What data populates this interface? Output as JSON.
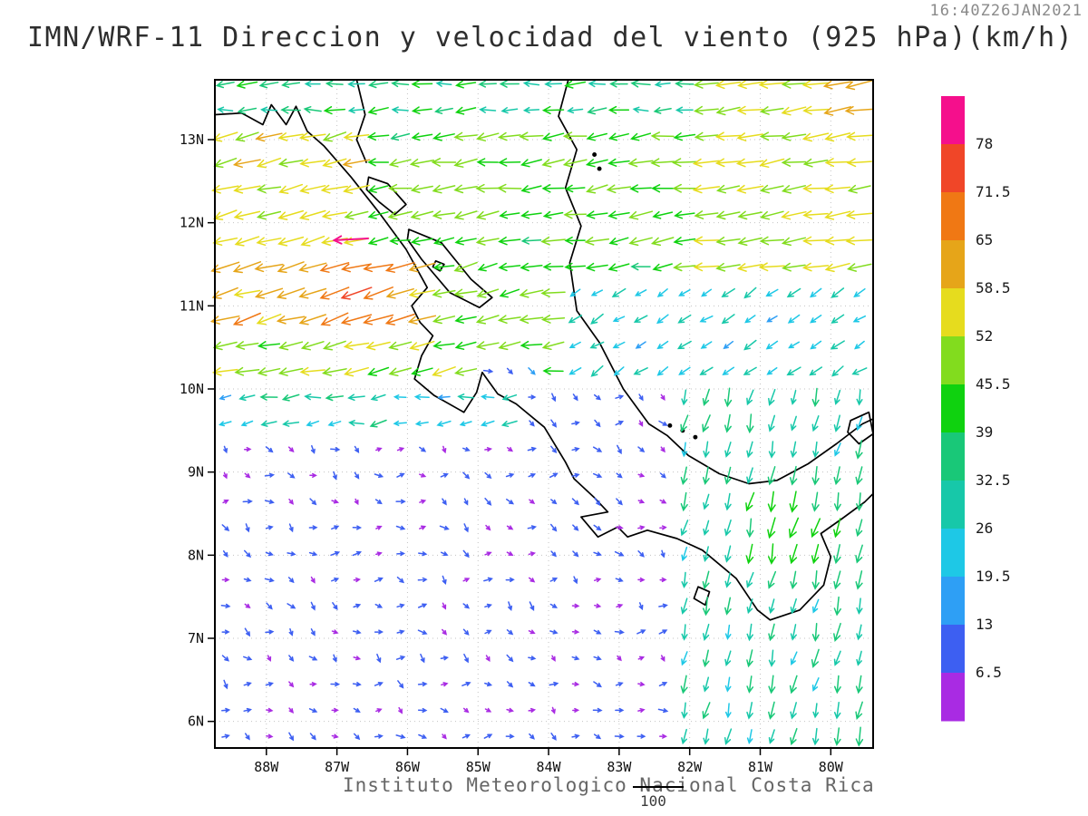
{
  "chart_data": {
    "type": "quiver",
    "title": "IMN/WRF-11 Direccion y velocidad del viento (925 hPa)(km/h)",
    "timestamp": "16:40Z26JAN2021",
    "caption": "Instituto Meteorologico Nacional Costa Rica",
    "reference_vector": {
      "label": "100",
      "speed_kmh": 100
    },
    "units": "km/h",
    "pressure_level": "925 hPa",
    "axes": {
      "lat_ticks": [
        {
          "label": "13N",
          "value": 13
        },
        {
          "label": "12N",
          "value": 12
        },
        {
          "label": "11N",
          "value": 11
        },
        {
          "label": "10N",
          "value": 10
        },
        {
          "label": "9N",
          "value": 9
        },
        {
          "label": "8N",
          "value": 8
        },
        {
          "label": "7N",
          "value": 7
        },
        {
          "label": "6N",
          "value": 6
        }
      ],
      "lon_ticks": [
        {
          "label": "88W",
          "value": -88
        },
        {
          "label": "87W",
          "value": -87
        },
        {
          "label": "86W",
          "value": -86
        },
        {
          "label": "85W",
          "value": -85
        },
        {
          "label": "84W",
          "value": -84
        },
        {
          "label": "83W",
          "value": -83
        },
        {
          "label": "82W",
          "value": -82
        },
        {
          "label": "81W",
          "value": -81
        },
        {
          "label": "80W",
          "value": -80
        }
      ]
    },
    "extent": {
      "lon_min": -88.73,
      "lon_max": -79.4,
      "lat_min": 5.68,
      "lat_max": 13.72
    },
    "colorbar": {
      "levels_kmh": [
        6.5,
        13,
        19.5,
        26,
        32.5,
        39,
        45.5,
        52,
        58.5,
        65,
        71.5,
        78
      ],
      "colors_low_to_high": [
        "#A92BE3",
        "#3D5FF2",
        "#2E9FF5",
        "#1EC8E6",
        "#17C8A9",
        "#19C878",
        "#0FD20F",
        "#82DC1E",
        "#E6DC1E",
        "#E6A519",
        "#F07814",
        "#F04628",
        "#F50F8C"
      ]
    },
    "grid": {
      "lon_start": -88.58,
      "lon_step": 0.31,
      "cols": 30,
      "lat_start": 5.82,
      "lat_step": 0.314,
      "rows": 26
    },
    "wind_regions": [
      {
        "name": "trades-north",
        "lon": [
          -88.8,
          -79.3
        ],
        "lat": [
          9.9,
          13.75
        ],
        "angle": 188,
        "jitter": 10,
        "speed": [
          38,
          52
        ]
      },
      {
        "name": "top-band",
        "lon": [
          -88.8,
          -79.3
        ],
        "lat": [
          13.05,
          13.75
        ],
        "angle": 183,
        "jitter": 12,
        "speed": [
          27,
          44
        ]
      },
      {
        "name": "west-yellow",
        "lon": [
          -88.8,
          -86.6
        ],
        "lat": [
          11.7,
          13.2
        ],
        "angle": 193,
        "jitter": 8,
        "speed": [
          50,
          60
        ]
      },
      {
        "name": "papagayo-jet",
        "lon": [
          -88.8,
          -85.55
        ],
        "lat": [
          10.72,
          11.75
        ],
        "angle": 197,
        "jitter": 8,
        "speed": [
          55,
          66
        ],
        "hotspots": [
          {
            "lon": -86.7,
            "lat": 11.15,
            "r": 0.9,
            "peak": 73
          }
        ]
      },
      {
        "name": "nicoya-band",
        "lon": [
          -88.8,
          -84.9
        ],
        "lat": [
          10.2,
          10.75
        ],
        "angle": 192,
        "jitter": 8,
        "speed": [
          44,
          54
        ],
        "hotspots": [
          {
            "lon": -85.5,
            "lat": 10.62,
            "r": 0.45,
            "peak": 62
          }
        ]
      },
      {
        "name": "lake-gap",
        "lon": [
          -85.55,
          -84.4
        ],
        "lat": [
          10.4,
          11.9
        ],
        "angle": 195,
        "jitter": 10,
        "speed": [
          40,
          52
        ]
      },
      {
        "name": "caribbean-north",
        "lon": [
          -81.9,
          -79.3
        ],
        "lat": [
          11.35,
          13.75
        ],
        "angle": 188,
        "jitter": 7,
        "speed": [
          48,
          58
        ],
        "hotspots": [
          {
            "lon": -79.6,
            "lat": 13.55,
            "r": 0.85,
            "peak": 64
          }
        ]
      },
      {
        "name": "caribbean-mid",
        "lon": [
          -83.9,
          -79.3
        ],
        "lat": [
          9.95,
          11.35
        ],
        "angle": 213,
        "jitter": 10,
        "speed": [
          19,
          30
        ]
      },
      {
        "name": "sw-pacific",
        "lon": [
          -88.8,
          -82.35
        ],
        "lat": [
          5.6,
          9.95
        ],
        "angle": -22,
        "jitter": 50,
        "speed": [
          4,
          13
        ]
      },
      {
        "name": "west-transition",
        "lon": [
          -88.8,
          -84.4
        ],
        "lat": [
          9.55,
          10.2
        ],
        "angle": 188,
        "jitter": 14,
        "speed": [
          18,
          34
        ]
      },
      {
        "name": "nicoya-lee",
        "lon": [
          -85.15,
          -83.95
        ],
        "lat": [
          9.95,
          10.45
        ],
        "angle": -30,
        "jitter": 40,
        "speed": [
          5,
          14
        ]
      },
      {
        "name": "se-panama",
        "lon": [
          -82.35,
          -79.3
        ],
        "lat": [
          5.6,
          9.95
        ],
        "angle": 256,
        "jitter": 10,
        "speed": [
          25,
          38
        ],
        "hotspots": [
          {
            "lon": -80.6,
            "lat": 8.4,
            "r": 1.1,
            "peak": 46
          }
        ]
      }
    ],
    "special_vectors": [
      {
        "lon": -86.8,
        "lat": 11.8,
        "speed": 80,
        "angle": 183
      }
    ],
    "coastline": {
      "pacific": [
        [
          -88.73,
          13.3
        ],
        [
          -88.35,
          13.32
        ],
        [
          -88.05,
          13.18
        ],
        [
          -87.93,
          13.42
        ],
        [
          -87.72,
          13.18
        ],
        [
          -87.58,
          13.4
        ],
        [
          -87.42,
          13.1
        ],
        [
          -87.18,
          12.92
        ],
        [
          -86.8,
          12.55
        ],
        [
          -86.4,
          12.12
        ],
        [
          -86.02,
          11.68
        ],
        [
          -85.72,
          11.22
        ],
        [
          -85.94,
          11.0
        ],
        [
          -85.82,
          10.8
        ],
        [
          -85.64,
          10.64
        ],
        [
          -85.8,
          10.4
        ],
        [
          -85.9,
          10.12
        ],
        [
          -85.62,
          9.92
        ],
        [
          -85.2,
          9.72
        ],
        [
          -85.02,
          9.96
        ],
        [
          -84.94,
          10.2
        ],
        [
          -84.72,
          9.94
        ],
        [
          -84.46,
          9.82
        ],
        [
          -84.06,
          9.54
        ],
        [
          -83.76,
          9.12
        ],
        [
          -83.64,
          8.92
        ],
        [
          -83.36,
          8.7
        ],
        [
          -83.16,
          8.52
        ],
        [
          -83.54,
          8.46
        ],
        [
          -83.3,
          8.22
        ],
        [
          -83.02,
          8.34
        ],
        [
          -82.88,
          8.22
        ],
        [
          -82.6,
          8.3
        ],
        [
          -82.18,
          8.2
        ],
        [
          -81.82,
          8.06
        ],
        [
          -81.34,
          7.72
        ],
        [
          -81.04,
          7.34
        ],
        [
          -80.86,
          7.22
        ],
        [
          -80.44,
          7.34
        ],
        [
          -80.1,
          7.64
        ],
        [
          -80.0,
          7.98
        ],
        [
          -80.14,
          8.26
        ],
        [
          -79.84,
          8.44
        ],
        [
          -79.52,
          8.64
        ],
        [
          -79.4,
          8.74
        ]
      ],
      "caribbean": [
        [
          -83.72,
          13.72
        ],
        [
          -83.86,
          13.28
        ],
        [
          -83.6,
          12.88
        ],
        [
          -83.76,
          12.42
        ],
        [
          -83.54,
          11.96
        ],
        [
          -83.7,
          11.52
        ],
        [
          -83.6,
          10.94
        ],
        [
          -83.28,
          10.56
        ],
        [
          -82.94,
          10.0
        ],
        [
          -82.58,
          9.58
        ],
        [
          -82.32,
          9.44
        ],
        [
          -82.02,
          9.2
        ],
        [
          -81.58,
          8.98
        ],
        [
          -81.16,
          8.86
        ],
        [
          -80.76,
          8.9
        ],
        [
          -80.32,
          9.1
        ],
        [
          -79.92,
          9.34
        ],
        [
          -79.55,
          9.58
        ],
        [
          -79.4,
          9.64
        ]
      ],
      "border_detail": [
        [
          -86.72,
          13.72
        ],
        [
          -86.6,
          13.3
        ],
        [
          -86.72,
          13.0
        ],
        [
          -86.58,
          12.72
        ]
      ],
      "lakes": [
        [
          [
            -85.98,
            11.92
          ],
          [
            -85.52,
            11.76
          ],
          [
            -85.1,
            11.32
          ],
          [
            -84.8,
            11.1
          ],
          [
            -84.98,
            10.98
          ],
          [
            -85.4,
            11.16
          ],
          [
            -85.8,
            11.56
          ],
          [
            -86.0,
            11.8
          ]
        ],
        [
          [
            -86.55,
            12.55
          ],
          [
            -86.28,
            12.47
          ],
          [
            -86.02,
            12.22
          ],
          [
            -86.18,
            12.1
          ],
          [
            -86.4,
            12.25
          ],
          [
            -86.58,
            12.4
          ]
        ]
      ],
      "islands": [
        [
          [
            -85.6,
            11.54
          ],
          [
            -85.48,
            11.5
          ],
          [
            -85.54,
            11.42
          ],
          [
            -85.64,
            11.47
          ]
        ],
        [
          [
            -81.88,
            7.62
          ],
          [
            -81.72,
            7.56
          ],
          [
            -81.78,
            7.4
          ],
          [
            -81.94,
            7.48
          ]
        ],
        [
          [
            -79.72,
            9.62
          ],
          [
            -79.46,
            9.72
          ],
          [
            -79.4,
            9.46
          ],
          [
            -79.6,
            9.34
          ],
          [
            -79.76,
            9.48
          ]
        ]
      ],
      "island_dots": [
        [
          -82.28,
          9.56
        ],
        [
          -82.1,
          9.5
        ],
        [
          -81.92,
          9.42
        ],
        [
          -83.35,
          12.82
        ],
        [
          -83.28,
          12.65
        ]
      ]
    }
  }
}
